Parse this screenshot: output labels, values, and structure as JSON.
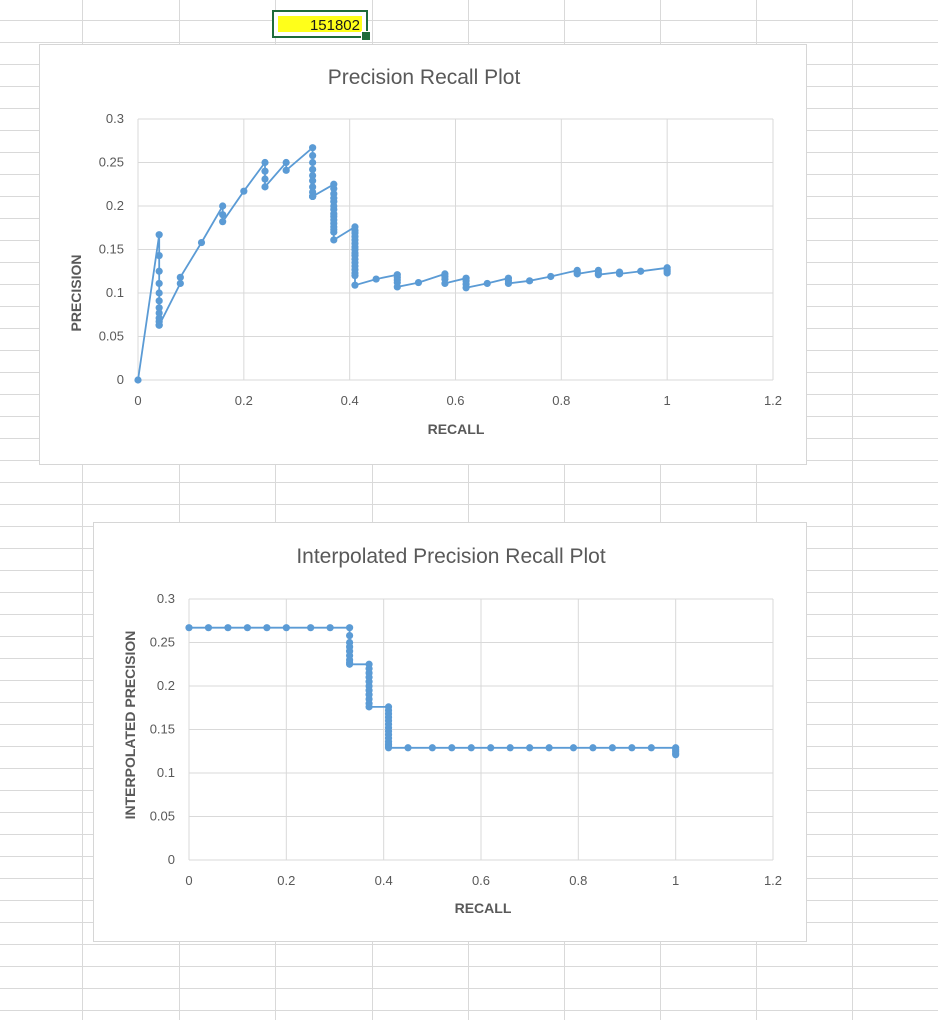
{
  "spreadsheet": {
    "selected_cell_value": "151802"
  },
  "chart_data": [
    {
      "type": "scatter",
      "title": "Precision Recall Plot",
      "xlabel": "RECALL",
      "ylabel": "PRECISION",
      "xlim": [
        0,
        1.2
      ],
      "ylim": [
        0,
        0.3
      ],
      "xticks": [
        0,
        0.2,
        0.4,
        0.6,
        0.8,
        1,
        1.2
      ],
      "yticks": [
        0,
        0.05,
        0.1,
        0.15,
        0.2,
        0.25,
        0.3
      ],
      "grid": true,
      "legend": "none",
      "connect_points": true,
      "series_color": "#5b9bd5",
      "series": [
        {
          "x": [
            0,
            0.04,
            0.04,
            0.04,
            0.04,
            0.04,
            0.04,
            0.04,
            0.04,
            0.04,
            0.04,
            0.04,
            0.04,
            0.08,
            0.08,
            0.12,
            0.16,
            0.16,
            0.16,
            0.2,
            0.24,
            0.24,
            0.24,
            0.24,
            0.28,
            0.28,
            0.33,
            0.33,
            0.33,
            0.33,
            0.33,
            0.33,
            0.33,
            0.33,
            0.33,
            0.33,
            0.33,
            0.33,
            0.37,
            0.37,
            0.37,
            0.37,
            0.37,
            0.37,
            0.37,
            0.37,
            0.37,
            0.37,
            0.37,
            0.37,
            0.37,
            0.37,
            0.37,
            0.41,
            0.41,
            0.41,
            0.41,
            0.41,
            0.41,
            0.41,
            0.41,
            0.41,
            0.41,
            0.41,
            0.41,
            0.41,
            0.41,
            0.41,
            0.41,
            0.41,
            0.45,
            0.49,
            0.49,
            0.49,
            0.49,
            0.49,
            0.53,
            0.58,
            0.58,
            0.58,
            0.58,
            0.62,
            0.62,
            0.62,
            0.62,
            0.66,
            0.7,
            0.7,
            0.7,
            0.74,
            0.78,
            0.83,
            0.83,
            0.83,
            0.87,
            0.87,
            0.87,
            0.91,
            0.91,
            0.95,
            1,
            1,
            1,
            1
          ],
          "values": [
            0,
            0.167,
            0.143,
            0.125,
            0.111,
            0.1,
            0.091,
            0.083,
            0.077,
            0.071,
            0.067,
            0.063,
            0.063,
            0.111,
            0.118,
            0.158,
            0.2,
            0.19,
            0.182,
            0.217,
            0.25,
            0.24,
            0.231,
            0.222,
            0.25,
            0.241,
            0.267,
            0.258,
            0.25,
            0.242,
            0.235,
            0.229,
            0.222,
            0.216,
            0.211,
            0.211,
            0.211,
            0.211,
            0.225,
            0.22,
            0.214,
            0.209,
            0.205,
            0.2,
            0.196,
            0.191,
            0.188,
            0.184,
            0.18,
            0.176,
            0.173,
            0.17,
            0.161,
            0.176,
            0.172,
            0.169,
            0.165,
            0.161,
            0.157,
            0.153,
            0.15,
            0.146,
            0.143,
            0.139,
            0.135,
            0.131,
            0.127,
            0.123,
            0.12,
            0.109,
            0.116,
            0.121,
            0.118,
            0.115,
            0.112,
            0.107,
            0.112,
            0.122,
            0.119,
            0.116,
            0.111,
            0.117,
            0.114,
            0.11,
            0.106,
            0.111,
            0.117,
            0.114,
            0.111,
            0.114,
            0.119,
            0.126,
            0.124,
            0.122,
            0.126,
            0.123,
            0.121,
            0.124,
            0.122,
            0.125,
            0.129,
            0.127,
            0.125,
            0.123
          ]
        }
      ]
    },
    {
      "type": "scatter",
      "title": "Interpolated Precision Recall Plot",
      "xlabel": "RECALL",
      "ylabel": "INTERPOLATED PRECISION",
      "xlim": [
        0,
        1.2
      ],
      "ylim": [
        0,
        0.3
      ],
      "xticks": [
        0,
        0.2,
        0.4,
        0.6,
        0.8,
        1,
        1.2
      ],
      "yticks": [
        0,
        0.05,
        0.1,
        0.15,
        0.2,
        0.25,
        0.3
      ],
      "grid": true,
      "legend": "none",
      "connect_points": true,
      "series_color": "#5b9bd5",
      "series": [
        {
          "x": [
            0,
            0.04,
            0.08,
            0.12,
            0.16,
            0.2,
            0.25,
            0.29,
            0.33,
            0.33,
            0.33,
            0.33,
            0.33,
            0.33,
            0.33,
            0.33,
            0.33,
            0.37,
            0.37,
            0.37,
            0.37,
            0.37,
            0.37,
            0.37,
            0.37,
            0.37,
            0.37,
            0.37,
            0.41,
            0.41,
            0.41,
            0.41,
            0.41,
            0.41,
            0.41,
            0.41,
            0.41,
            0.41,
            0.41,
            0.41,
            0.41,
            0.41,
            0.45,
            0.5,
            0.54,
            0.58,
            0.62,
            0.66,
            0.7,
            0.74,
            0.79,
            0.83,
            0.87,
            0.91,
            0.95,
            1,
            1,
            1,
            1,
            1
          ],
          "values": [
            0.267,
            0.267,
            0.267,
            0.267,
            0.267,
            0.267,
            0.267,
            0.267,
            0.267,
            0.258,
            0.25,
            0.245,
            0.24,
            0.235,
            0.23,
            0.227,
            0.225,
            0.225,
            0.22,
            0.215,
            0.21,
            0.205,
            0.2,
            0.195,
            0.19,
            0.185,
            0.18,
            0.176,
            0.176,
            0.172,
            0.168,
            0.164,
            0.16,
            0.156,
            0.152,
            0.148,
            0.144,
            0.14,
            0.136,
            0.133,
            0.131,
            0.129,
            0.129,
            0.129,
            0.129,
            0.129,
            0.129,
            0.129,
            0.129,
            0.129,
            0.129,
            0.129,
            0.129,
            0.129,
            0.129,
            0.129,
            0.127,
            0.125,
            0.123,
            0.121
          ]
        }
      ]
    }
  ]
}
